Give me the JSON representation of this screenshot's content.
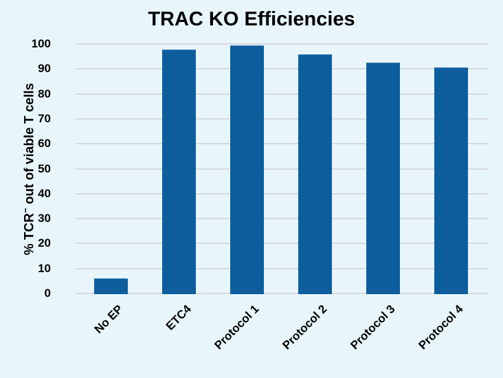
{
  "chart_data": {
    "type": "bar",
    "title": "TRAC KO Efficiencies",
    "xlabel": "",
    "ylabel": "% TCR− out of viable T cells",
    "ylabel_main": "% TCR",
    "ylabel_sup": "−",
    "ylabel_rest": " out of viable T cells",
    "categories": [
      "No EP",
      "ETC4",
      "Protocol 1",
      "Protocol 2",
      "Protocol 3",
      "Protocol 4"
    ],
    "values": [
      6,
      97.8,
      99.4,
      95.9,
      92.6,
      90.6
    ],
    "ylim": [
      0,
      100
    ],
    "yticks": [
      "0",
      "10",
      "20",
      "30",
      "40",
      "50",
      "60",
      "70",
      "80",
      "90",
      "100"
    ],
    "grid": true,
    "legend": null,
    "bar_color": "#0e5e9e"
  }
}
